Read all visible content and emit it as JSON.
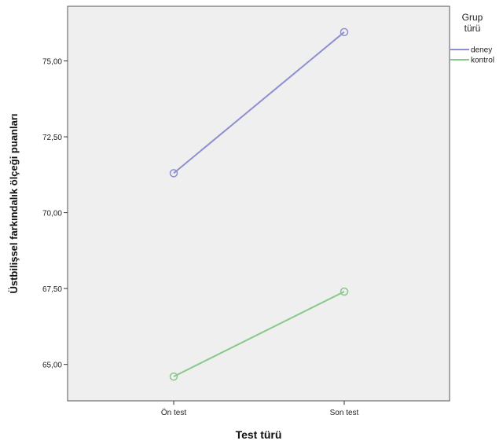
{
  "chart_data": {
    "type": "line",
    "xlabel": "Test türü",
    "ylabel": "Üstbilişsel farkındalık ölçeği puanları",
    "categories": [
      "Ön test",
      "Son test"
    ],
    "ylim": [
      63.8,
      76.8
    ],
    "yticks": [
      "65,00",
      "67,50",
      "70,00",
      "72,50",
      "75,00"
    ],
    "ytick_values": [
      65,
      67.5,
      70,
      72.5,
      75
    ],
    "grid": false,
    "legend": {
      "title_line1": "Grup",
      "title_line2": "türü",
      "placement": "right"
    },
    "series": [
      {
        "name": "deney",
        "values": [
          71.3,
          75.95
        ],
        "color": "#8c8fd0"
      },
      {
        "name": "kontrol",
        "values": [
          64.6,
          67.4
        ],
        "color": "#86c98a"
      }
    ]
  }
}
